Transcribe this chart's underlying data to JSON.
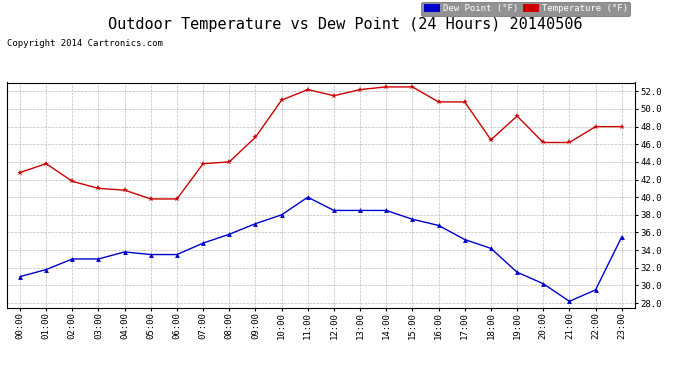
{
  "title": "Outdoor Temperature vs Dew Point (24 Hours) 20140506",
  "copyright_text": "Copyright 2014 Cartronics.com",
  "x_labels": [
    "00:00",
    "01:00",
    "02:00",
    "03:00",
    "04:00",
    "05:00",
    "06:00",
    "07:00",
    "08:00",
    "09:00",
    "10:00",
    "11:00",
    "12:00",
    "13:00",
    "14:00",
    "15:00",
    "16:00",
    "17:00",
    "18:00",
    "19:00",
    "20:00",
    "21:00",
    "22:00",
    "23:00"
  ],
  "temperature": [
    42.8,
    43.8,
    41.8,
    41.0,
    40.8,
    39.8,
    39.8,
    43.8,
    44.0,
    46.8,
    51.0,
    52.2,
    51.5,
    52.2,
    52.5,
    52.5,
    50.8,
    50.8,
    46.5,
    49.2,
    46.2,
    46.2,
    48.0,
    48.0
  ],
  "dew_point": [
    31.0,
    31.8,
    33.0,
    33.0,
    33.8,
    33.5,
    33.5,
    34.8,
    35.8,
    37.0,
    38.0,
    40.0,
    38.5,
    38.5,
    38.5,
    37.5,
    36.8,
    35.2,
    34.2,
    31.5,
    30.2,
    28.2,
    29.5,
    35.5
  ],
  "temp_color": "#cc0000",
  "dew_color": "#0000cc",
  "ylim_min": 27.5,
  "ylim_max": 53.0,
  "background_color": "#ffffff",
  "plot_bg_color": "#ffffff",
  "grid_color": "#bbbbbb",
  "title_fontsize": 11,
  "copyright_fontsize": 6.5,
  "tick_fontsize": 6.5,
  "legend_dew_label": "Dew Point (°F)",
  "legend_temp_label": "Temperature (°F)"
}
